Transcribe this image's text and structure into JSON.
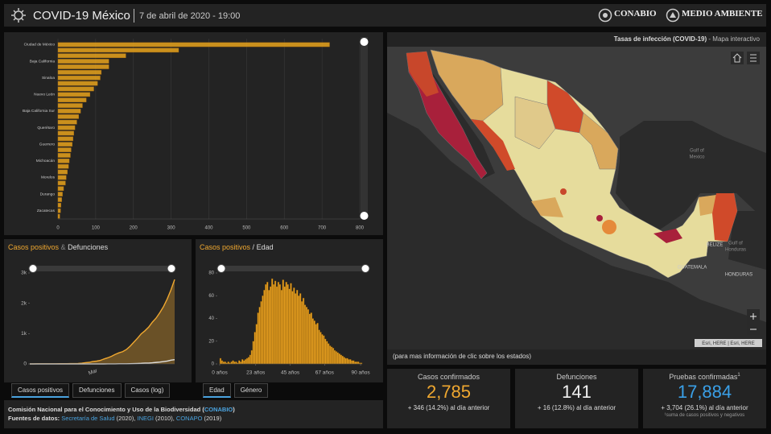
{
  "header": {
    "title": "COVID-19 México",
    "date": "7 de abril de 2020 - 19:00",
    "logos": [
      "CONABIO",
      "MEDIO AMBIENTE"
    ]
  },
  "chart_data": [
    {
      "type": "hbar",
      "categories": [
        "Ciudad de México",
        null,
        null,
        "Baja California",
        null,
        null,
        "Sinaloa",
        null,
        null,
        "Nuevo León",
        null,
        null,
        "Baja California Sur",
        null,
        null,
        "Querétaro",
        null,
        null,
        "Guerrero",
        null,
        null,
        "Michoacán",
        null,
        null,
        "Morelos",
        null,
        null,
        "Durango",
        null,
        null,
        "Zacatecas",
        null
      ],
      "values": [
        720,
        320,
        180,
        135,
        135,
        115,
        112,
        105,
        95,
        85,
        75,
        65,
        60,
        55,
        50,
        45,
        42,
        40,
        38,
        35,
        33,
        30,
        28,
        25,
        22,
        20,
        15,
        12,
        10,
        8,
        7,
        5
      ],
      "color": "#e8a31c",
      "xlim": [
        0,
        800
      ],
      "xticks": [
        0,
        100,
        200,
        300,
        400,
        500,
        600,
        700,
        800
      ],
      "grid": true
    },
    {
      "type": "area",
      "title": [
        "Casos positivos",
        "&",
        "Defunciones"
      ],
      "categories": [
        null,
        null,
        null,
        null,
        null,
        null,
        null,
        null,
        null,
        null,
        null,
        null,
        null,
        null,
        null,
        null,
        null,
        "Mar",
        null,
        null,
        null,
        null,
        null,
        null,
        null,
        null,
        null,
        null,
        null,
        null,
        null,
        null,
        null,
        null,
        null,
        null,
        null,
        null,
        null,
        null
      ],
      "series": [
        {
          "name": "Casos positivos",
          "color": "#f0a830",
          "values": [
            1,
            2,
            4,
            5,
            5,
            5,
            5,
            6,
            7,
            7,
            7,
            11,
            12,
            15,
            26,
            41,
            53,
            82,
            93,
            118,
            164,
            203,
            251,
            316,
            367,
            405,
            475,
            585,
            717,
            848,
            993,
            1094,
            1215,
            1378,
            1510,
            1688,
            1890,
            2143,
            2439,
            2785
          ]
        },
        {
          "name": "Defunciones",
          "color": "#e0e0e0",
          "values": [
            0,
            0,
            0,
            0,
            0,
            0,
            0,
            0,
            0,
            0,
            0,
            0,
            0,
            0,
            0,
            0,
            0,
            0,
            0,
            0,
            0,
            1,
            2,
            2,
            4,
            5,
            6,
            8,
            12,
            16,
            20,
            28,
            29,
            37,
            50,
            60,
            79,
            94,
            125,
            141
          ]
        }
      ],
      "ylim": [
        0,
        3000
      ],
      "yticks": [
        0,
        {
          "value": 1000,
          "label": "1k"
        },
        {
          "value": 2000,
          "label": "2k"
        },
        {
          "value": 3000,
          "label": "3k"
        }
      ]
    },
    {
      "type": "histogram",
      "title": [
        "Casos positivos",
        "/",
        "Edad"
      ],
      "bins": [
        0,
        1,
        2,
        3,
        4,
        5,
        6,
        7,
        8,
        9,
        10,
        11,
        12,
        13,
        14,
        15,
        16,
        17,
        18,
        19,
        20,
        21,
        22,
        23,
        24,
        25,
        26,
        27,
        28,
        29,
        30,
        31,
        32,
        33,
        34,
        35,
        36,
        37,
        38,
        39,
        40,
        41,
        42,
        43,
        44,
        45,
        46,
        47,
        48,
        49,
        50,
        51,
        52,
        53,
        54,
        55,
        56,
        57,
        58,
        59,
        60,
        61,
        62,
        63,
        64,
        65,
        66,
        67,
        68,
        69,
        70,
        71,
        72,
        73,
        74,
        75,
        76,
        77,
        78,
        79,
        80,
        81,
        82,
        83,
        84,
        85,
        86,
        87,
        88,
        89,
        90,
        91
      ],
      "values": [
        5,
        3,
        2,
        2,
        1,
        2,
        1,
        2,
        3,
        2,
        2,
        1,
        3,
        2,
        4,
        3,
        4,
        5,
        6,
        8,
        12,
        20,
        28,
        35,
        45,
        50,
        55,
        60,
        65,
        70,
        72,
        65,
        68,
        75,
        70,
        73,
        68,
        72,
        70,
        65,
        74,
        68,
        72,
        70,
        66,
        71,
        64,
        67,
        62,
        65,
        60,
        62,
        55,
        58,
        52,
        50,
        48,
        44,
        45,
        40,
        38,
        35,
        36,
        30,
        28,
        26,
        25,
        22,
        20,
        18,
        16,
        15,
        14,
        12,
        11,
        10,
        9,
        8,
        7,
        6,
        5,
        5,
        4,
        4,
        3,
        3,
        2,
        2,
        2,
        1,
        1
      ],
      "color": "#e8a020",
      "xlim": [
        0,
        91
      ],
      "xticks": [
        {
          "value": 0,
          "label": "0 años"
        },
        {
          "value": 23,
          "label": "23 años"
        },
        {
          "value": 45,
          "label": "45 años"
        },
        {
          "value": 67,
          "label": "67 años"
        },
        {
          "value": 90,
          "label": "90 años"
        }
      ],
      "ylim": [
        0,
        80
      ],
      "yticks": [
        0,
        20,
        40,
        60,
        80
      ]
    }
  ],
  "tabs": {
    "cases": [
      "Casos positivos",
      "Defunciones",
      "Casos (log)"
    ],
    "age": [
      "Edad",
      "Género"
    ]
  },
  "footer": {
    "credit": [
      "Comisión Nacional para el Conocimiento y Uso de la Biodiversidad",
      "(",
      "CONABIO",
      ")"
    ],
    "sources": [
      "Fuentes de datos:",
      "Secretaría de Salud",
      "(2020),",
      "INEGI",
      "(2010),",
      "CONAPO",
      "(2019)"
    ]
  },
  "map": {
    "title": "Tasas de infección (COVID-19)",
    "subtitle": "- Mapa interactivo",
    "labels": [
      "Gulf of",
      "Mexico",
      "BELIZE",
      "Gulf of",
      "Honduras",
      "GUATEMALA",
      "HONDURAS"
    ],
    "attribution": "Esri, HERE | Esri, HERE",
    "note": "(para mas información de clic sobre los estados)"
  },
  "stats": [
    {
      "label": "Casos confirmados",
      "value": "2,785",
      "change": "+ 346 (14.2%) al día anterior"
    },
    {
      "label": "Defunciones",
      "value": "141",
      "change": "+ 16 (12.8%) al día anterior"
    },
    {
      "label": "Pruebas confirmadas",
      "mark": "1",
      "value": "17,884",
      "change": "+ 3,704 (26.1%) al día anterior",
      "note": "¹suma de casos positivos y negativos"
    }
  ]
}
